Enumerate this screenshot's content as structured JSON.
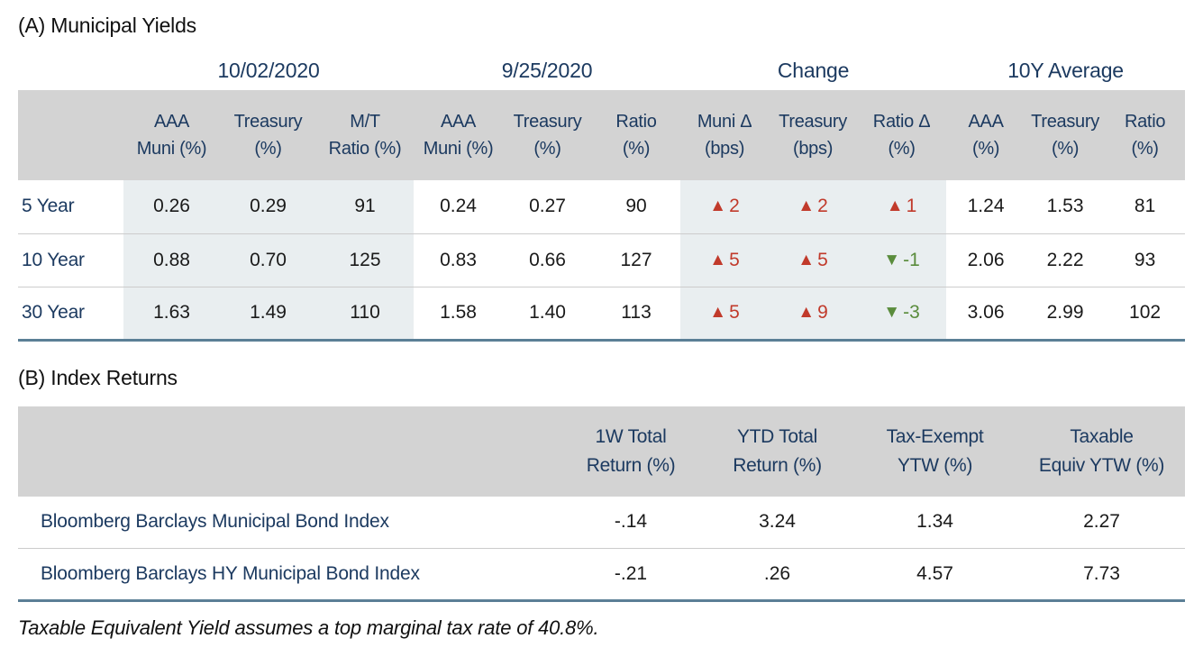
{
  "colors": {
    "navy_text": "#1c3a60",
    "header_bg": "#d3d3d3",
    "shaded_column_bg": "#e9eef0",
    "up_red": "#c13a2b",
    "down_green": "#5a8c3c",
    "table_bottom_border": "#5b7f96",
    "row_divider": "#cccccc"
  },
  "icons": {
    "up": "▲",
    "down": "▼"
  },
  "table_a": {
    "title": "(A) Municipal Yields",
    "groups": [
      "10/02/2020",
      "9/25/2020",
      "Change",
      "10Y Average"
    ],
    "columns": [
      [
        "AAA",
        "Muni (%)"
      ],
      [
        "Treasury",
        "(%)"
      ],
      [
        "M/T",
        "Ratio (%)"
      ],
      [
        "AAA",
        "Muni (%)"
      ],
      [
        "Treasury",
        "(%)"
      ],
      [
        "Ratio",
        "(%)"
      ],
      [
        "Muni Δ",
        "(bps)"
      ],
      [
        "Treasury",
        "(bps)"
      ],
      [
        "Ratio Δ",
        "(%)"
      ],
      [
        "AAA",
        "(%)"
      ],
      [
        "Treasury",
        "(%)"
      ],
      [
        "Ratio",
        "(%)"
      ]
    ],
    "rows": [
      {
        "label": "5 Year",
        "cells": [
          "0.26",
          "0.29",
          "91",
          "0.24",
          "0.27",
          "90",
          {
            "dir": "up",
            "val": "2"
          },
          {
            "dir": "up",
            "val": "2"
          },
          {
            "dir": "up",
            "val": "1"
          },
          "1.24",
          "1.53",
          "81"
        ]
      },
      {
        "label": "10 Year",
        "cells": [
          "0.88",
          "0.70",
          "125",
          "0.83",
          "0.66",
          "127",
          {
            "dir": "up",
            "val": "5"
          },
          {
            "dir": "up",
            "val": "5"
          },
          {
            "dir": "down",
            "val": "-1"
          },
          "2.06",
          "2.22",
          "93"
        ]
      },
      {
        "label": "30 Year",
        "cells": [
          "1.63",
          "1.49",
          "110",
          "1.58",
          "1.40",
          "113",
          {
            "dir": "up",
            "val": "5"
          },
          {
            "dir": "up",
            "val": "9"
          },
          {
            "dir": "down",
            "val": "-3"
          },
          "3.06",
          "2.99",
          "102"
        ]
      }
    ]
  },
  "table_b": {
    "title": "(B) Index Returns",
    "columns": [
      [
        "1W Total",
        "Return (%)"
      ],
      [
        "YTD Total",
        "Return (%)"
      ],
      [
        "Tax-Exempt",
        "YTW (%)"
      ],
      [
        "Taxable",
        "Equiv YTW (%)"
      ]
    ],
    "rows": [
      {
        "label": "Bloomberg Barclays Municipal Bond Index",
        "cells": [
          "-.14",
          "3.24",
          "1.34",
          "2.27"
        ]
      },
      {
        "label": "Bloomberg Barclays HY Municipal Bond Index",
        "cells": [
          "-.21",
          ".26",
          "4.57",
          "7.73"
        ]
      }
    ]
  },
  "footnote": "Taxable Equivalent Yield assumes a top marginal tax rate of 40.8%."
}
